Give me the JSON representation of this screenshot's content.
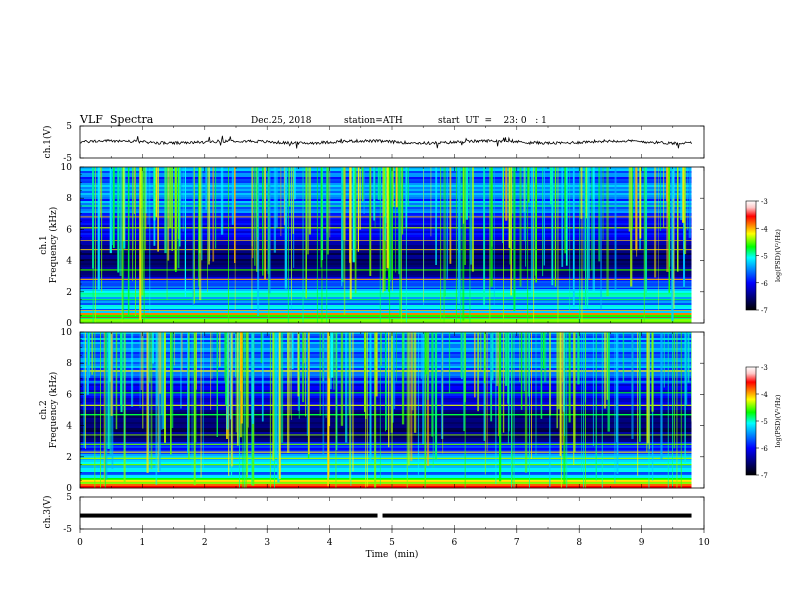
{
  "header": {
    "title": "VLF  Spectra",
    "date": "Dec.25, 2018",
    "station": "station=ATH",
    "start_ut": "start  UT  =    23: 0   : 1"
  },
  "chart_data": {
    "type": "heatmap",
    "title": "VLF  Spectra",
    "xlabel": "Time  (min)",
    "xlim": [
      0,
      10
    ],
    "x_ticks": [
      "0",
      "1",
      "2",
      "3",
      "4",
      "5",
      "6",
      "7",
      "8",
      "9",
      "10"
    ],
    "panels": [
      {
        "name": "ch.1 waveform",
        "type": "line",
        "ylabel": "ch.1(V)",
        "ylim": [
          -5,
          5
        ],
        "y_ticks": [
          "5",
          "-5"
        ],
        "x_extent": [
          0,
          9.8
        ],
        "baseline_v": 0,
        "noise_amplitude_v": 1
      },
      {
        "name": "ch.1 spectrogram",
        "type": "heatmap",
        "ylabel": "ch.1\nFrequency  (kHz)",
        "ylim": [
          0,
          10
        ],
        "y_ticks": [
          "0",
          "2",
          "4",
          "6",
          "8",
          "10"
        ],
        "x_extent": [
          0,
          9.8
        ]
      },
      {
        "name": "ch.2 spectrogram",
        "type": "heatmap",
        "ylabel": "ch.2\nFrequency  (kHz)",
        "ylim": [
          0,
          10
        ],
        "y_ticks": [
          "0",
          "2",
          "4",
          "6",
          "8",
          "10"
        ],
        "x_extent": [
          0,
          9.8
        ]
      },
      {
        "name": "ch.3 waveform",
        "type": "line",
        "ylabel": "ch.3(V)",
        "ylim": [
          -5,
          5
        ],
        "y_ticks": [
          "5",
          "-5"
        ],
        "x_extent": [
          0,
          9.8
        ],
        "baseline_v": -0.8,
        "gap_at_min": 4.8
      }
    ],
    "colorbar": {
      "label": "log(PSD)(V²/Hz)",
      "range": [
        -7,
        -3
      ],
      "ticks": [
        "-3",
        "-4",
        "-5",
        "-6",
        "-7"
      ],
      "colors": [
        "#000000",
        "#00007a",
        "#0000ff",
        "#0090ff",
        "#00ffff",
        "#00ff00",
        "#ffff00",
        "#ff7f00",
        "#ff0000",
        "#ffc8c8",
        "#ffffff"
      ]
    }
  }
}
